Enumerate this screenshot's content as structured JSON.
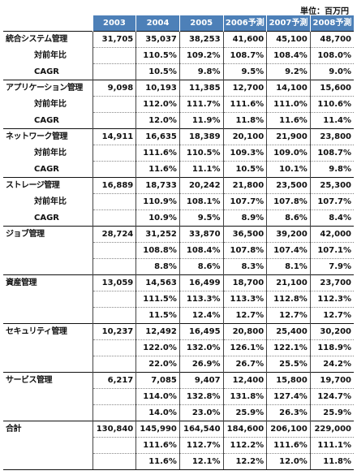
{
  "unit_label": "単位：百万円",
  "headers": [
    "",
    "2003",
    "2004",
    "2005",
    "2006予測",
    "2007予測",
    "2008予測"
  ],
  "categories": [
    {
      "name": "統合システム管理",
      "values": [
        "31,705",
        "35,037",
        "38,253",
        "41,600",
        "45,100",
        "48,700"
      ],
      "sub_rows": [
        {
          "label": "対前年比",
          "values": [
            "",
            "110.5%",
            "109.2%",
            "108.7%",
            "108.4%",
            "108.0%"
          ]
        },
        {
          "label": "CAGR",
          "values": [
            "",
            "10.5%",
            "9.8%",
            "9.5%",
            "9.2%",
            "9.0%"
          ]
        }
      ]
    },
    {
      "name": "アプリケーション管理",
      "values": [
        "9,098",
        "10,193",
        "11,385",
        "12,700",
        "14,100",
        "15,600"
      ],
      "sub_rows": [
        {
          "label": "対前年比",
          "values": [
            "",
            "112.0%",
            "111.7%",
            "111.6%",
            "111.0%",
            "110.6%"
          ]
        },
        {
          "label": "CAGR",
          "values": [
            "",
            "12.0%",
            "11.9%",
            "11.8%",
            "11.6%",
            "11.4%"
          ]
        }
      ]
    },
    {
      "name": "ネットワーク管理",
      "values": [
        "14,911",
        "16,635",
        "18,389",
        "20,100",
        "21,900",
        "23,800"
      ],
      "sub_rows": [
        {
          "label": "対前年比",
          "values": [
            "",
            "111.6%",
            "110.5%",
            "109.3%",
            "109.0%",
            "108.7%"
          ]
        },
        {
          "label": "CAGR",
          "values": [
            "",
            "11.6%",
            "11.1%",
            "10.5%",
            "10.1%",
            "9.8%"
          ]
        }
      ]
    },
    {
      "name": "ストレージ管理",
      "values": [
        "16,889",
        "18,733",
        "20,242",
        "21,800",
        "23,500",
        "25,300"
      ],
      "sub_rows": [
        {
          "label": "対前年比",
          "values": [
            "",
            "110.9%",
            "108.1%",
            "107.7%",
            "107.8%",
            "107.7%"
          ]
        },
        {
          "label": "CAGR",
          "values": [
            "",
            "10.9%",
            "9.5%",
            "8.9%",
            "8.6%",
            "8.4%"
          ]
        }
      ]
    },
    {
      "name": "ジョブ管理",
      "values": [
        "28,724",
        "31,252",
        "33,870",
        "36,500",
        "39,200",
        "42,000"
      ],
      "sub_rows": [
        {
          "label": "",
          "values": [
            "",
            "108.8%",
            "108.4%",
            "107.8%",
            "107.4%",
            "107.1%"
          ]
        },
        {
          "label": "",
          "values": [
            "",
            "8.8%",
            "8.6%",
            "8.3%",
            "8.1%",
            "7.9%"
          ]
        }
      ]
    },
    {
      "name": "資産管理",
      "values": [
        "13,059",
        "14,563",
        "16,499",
        "18,700",
        "21,100",
        "23,700"
      ],
      "sub_rows": [
        {
          "label": "",
          "values": [
            "",
            "111.5%",
            "113.3%",
            "113.3%",
            "112.8%",
            "112.3%"
          ]
        },
        {
          "label": "",
          "values": [
            "",
            "11.5%",
            "12.4%",
            "12.7%",
            "12.7%",
            "12.7%"
          ]
        }
      ]
    },
    {
      "name": "セキュリティ管理",
      "values": [
        "10,237",
        "12,492",
        "16,495",
        "20,800",
        "25,400",
        "30,200"
      ],
      "sub_rows": [
        {
          "label": "",
          "values": [
            "",
            "122.0%",
            "132.0%",
            "126.1%",
            "122.1%",
            "118.9%"
          ]
        },
        {
          "label": "",
          "values": [
            "",
            "22.0%",
            "26.9%",
            "26.7%",
            "25.5%",
            "24.2%"
          ]
        }
      ]
    },
    {
      "name": "サービス管理",
      "values": [
        "6,217",
        "7,085",
        "9,407",
        "12,400",
        "15,800",
        "19,700"
      ],
      "sub_rows": [
        {
          "label": "",
          "values": [
            "",
            "114.0%",
            "132.8%",
            "131.8%",
            "127.4%",
            "124.7%"
          ]
        },
        {
          "label": "",
          "values": [
            "",
            "14.0%",
            "23.0%",
            "25.9%",
            "26.3%",
            "25.9%"
          ]
        }
      ]
    },
    {
      "name": "合計",
      "values": [
        "130,840",
        "145,990",
        "164,540",
        "184,600",
        "206,100",
        "229,000"
      ],
      "sub_rows": [
        {
          "label": "",
          "values": [
            "",
            "111.6%",
            "112.7%",
            "112.2%",
            "111.6%",
            "111.1%"
          ]
        },
        {
          "label": "",
          "values": [
            "",
            "11.6%",
            "12.1%",
            "12.2%",
            "12.0%",
            "11.8%"
          ]
        }
      ]
    }
  ],
  "colors": {
    "header_bg": "#4d80b8",
    "header_text": "#ffffff"
  }
}
